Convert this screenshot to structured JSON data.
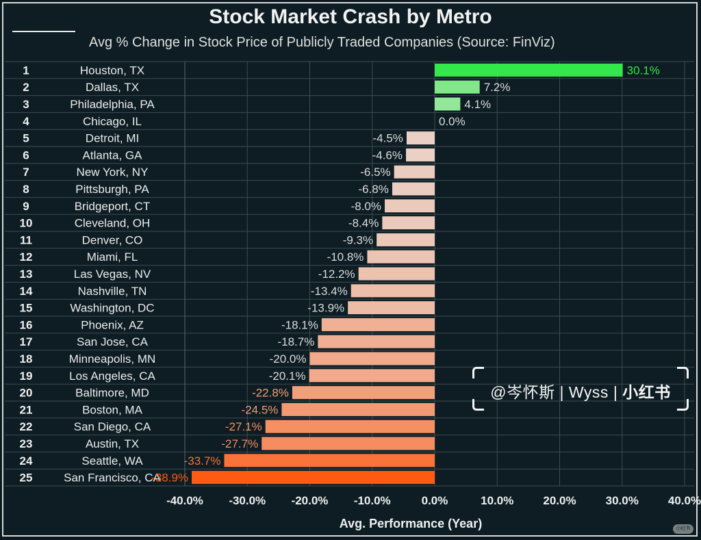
{
  "title": "Stock Market Crash by Metro",
  "subtitle": "Avg % Change in Stock Price of Publicly Traded Companies (Source: FinViz)",
  "watermark": {
    "handle": "@岑怀斯",
    "name": "Wyss",
    "brand": "小红书",
    "badge": "小红书"
  },
  "colors": {
    "background": "#0d1d23",
    "grid": "#3f4d52",
    "positive_max": "#33e84a",
    "positive_min": "#c9e8c6",
    "negative_min": "#e9d4cb",
    "negative_max": "#ff5a12"
  },
  "chart_data": {
    "type": "bar",
    "orientation": "horizontal",
    "title": "Stock Market Crash by Metro",
    "subtitle": "Avg % Change in Stock Price of Publicly Traded Companies (Source: FinViz)",
    "xlabel": "Avg. Performance (Year)",
    "ylabel": "",
    "xlim": [
      -40,
      40
    ],
    "xticks": [
      -40,
      -30,
      -20,
      -10,
      0,
      10,
      20,
      30,
      40
    ],
    "xtick_labels": [
      "-40.0%",
      "-30.0%",
      "-20.0%",
      "-10.0%",
      "0.0%",
      "10.0%",
      "20.0%",
      "30.0%",
      "40.0%"
    ],
    "grid": true,
    "ranks": [
      "1",
      "2",
      "3",
      "4",
      "5",
      "6",
      "7",
      "8",
      "9",
      "10",
      "11",
      "12",
      "13",
      "14",
      "15",
      "16",
      "17",
      "18",
      "19",
      "20",
      "21",
      "22",
      "23",
      "24",
      "25"
    ],
    "categories": [
      "Houston, TX",
      "Dallas, TX",
      "Philadelphia, PA",
      "Chicago, IL",
      "Detroit, MI",
      "Atlanta, GA",
      "New York, NY",
      "Pittsburgh, PA",
      "Bridgeport, CT",
      "Cleveland, OH",
      "Denver, CO",
      "Miami, FL",
      "Las Vegas, NV",
      "Nashville, TN",
      "Washington, DC",
      "Phoenix, AZ",
      "San Jose, CA",
      "Minneapolis, MN",
      "Los Angeles, CA",
      "Baltimore, MD",
      "Boston, MA",
      "San Diego, CA",
      "Austin, TX",
      "Seattle, WA",
      "San Francisco, CA"
    ],
    "values": [
      30.1,
      7.2,
      4.1,
      0.0,
      -4.5,
      -4.6,
      -6.5,
      -6.8,
      -8.0,
      -8.4,
      -9.3,
      -10.8,
      -12.2,
      -13.4,
      -13.9,
      -18.1,
      -18.7,
      -20.0,
      -20.1,
      -22.8,
      -24.5,
      -27.1,
      -27.7,
      -33.7,
      -38.9
    ],
    "value_labels": [
      "30.1%",
      "7.2%",
      "4.1%",
      "0.0%",
      "-4.5%",
      "-4.6%",
      "-6.5%",
      "-6.8%",
      "-8.0%",
      "-8.4%",
      "-9.3%",
      "-10.8%",
      "-12.2%",
      "-13.4%",
      "-13.9%",
      "-18.1%",
      "-18.7%",
      "-20.0%",
      "-20.1%",
      "-22.8%",
      "-24.5%",
      "-27.1%",
      "-27.7%",
      "-33.7%",
      "-38.9%"
    ]
  }
}
